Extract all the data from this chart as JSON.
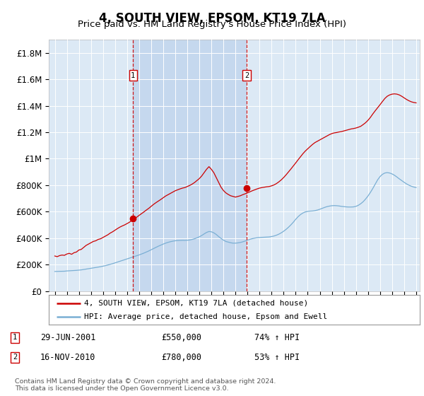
{
  "title": "4, SOUTH VIEW, EPSOM, KT19 7LA",
  "subtitle": "Price paid vs. HM Land Registry's House Price Index (HPI)",
  "title_fontsize": 12,
  "subtitle_fontsize": 9.5,
  "background_color": "#ffffff",
  "plot_bg_color": "#dce9f5",
  "shaded_color": "#c5d8ee",
  "grid_color": "#ffffff",
  "ylim": [
    0,
    1900000
  ],
  "yticks": [
    0,
    200000,
    400000,
    600000,
    800000,
    1000000,
    1200000,
    1400000,
    1600000,
    1800000
  ],
  "ytick_labels": [
    "£0",
    "£200K",
    "£400K",
    "£600K",
    "£800K",
    "£1M",
    "£1.2M",
    "£1.4M",
    "£1.6M",
    "£1.8M"
  ],
  "red_line_color": "#cc0000",
  "blue_line_color": "#7aafd4",
  "vline_color": "#cc0000",
  "marker1_year": 2001.5,
  "marker2_year": 2010.92,
  "sale1": {
    "date": "29-JUN-2001",
    "price": "£550,000",
    "hpi_pct": "74%",
    "label": "1",
    "y": 550000
  },
  "sale2": {
    "date": "16-NOV-2010",
    "price": "£780,000",
    "hpi_pct": "53%",
    "label": "2",
    "y": 780000
  },
  "legend_line1": "4, SOUTH VIEW, EPSOM, KT19 7LA (detached house)",
  "legend_line2": "HPI: Average price, detached house, Epsom and Ewell",
  "footnote": "Contains HM Land Registry data © Crown copyright and database right 2024.\nThis data is licensed under the Open Government Licence v3.0.",
  "red_years": [
    1995.0,
    1995.2,
    1995.4,
    1995.6,
    1995.8,
    1996.0,
    1996.2,
    1996.4,
    1996.6,
    1996.8,
    1997.0,
    1997.2,
    1997.4,
    1997.6,
    1997.8,
    1998.0,
    1998.2,
    1998.4,
    1998.6,
    1998.8,
    1999.0,
    1999.2,
    1999.4,
    1999.6,
    1999.8,
    2000.0,
    2000.2,
    2000.4,
    2000.6,
    2000.8,
    2001.0,
    2001.2,
    2001.4,
    2001.6,
    2001.8,
    2002.0,
    2002.2,
    2002.4,
    2002.6,
    2002.8,
    2003.0,
    2003.2,
    2003.4,
    2003.6,
    2003.8,
    2004.0,
    2004.2,
    2004.4,
    2004.6,
    2004.8,
    2005.0,
    2005.2,
    2005.4,
    2005.6,
    2005.8,
    2006.0,
    2006.2,
    2006.4,
    2006.6,
    2006.8,
    2007.0,
    2007.2,
    2007.4,
    2007.6,
    2007.8,
    2008.0,
    2008.2,
    2008.4,
    2008.6,
    2008.8,
    2009.0,
    2009.2,
    2009.4,
    2009.6,
    2009.8,
    2010.0,
    2010.2,
    2010.4,
    2010.6,
    2010.8,
    2011.0,
    2011.2,
    2011.4,
    2011.6,
    2011.8,
    2012.0,
    2012.2,
    2012.4,
    2012.6,
    2012.8,
    2013.0,
    2013.2,
    2013.4,
    2013.6,
    2013.8,
    2014.0,
    2014.2,
    2014.4,
    2014.6,
    2014.8,
    2015.0,
    2015.2,
    2015.4,
    2015.6,
    2015.8,
    2016.0,
    2016.2,
    2016.4,
    2016.6,
    2016.8,
    2017.0,
    2017.2,
    2017.4,
    2017.6,
    2017.8,
    2018.0,
    2018.2,
    2018.4,
    2018.6,
    2018.8,
    2019.0,
    2019.2,
    2019.4,
    2019.6,
    2019.8,
    2020.0,
    2020.2,
    2020.4,
    2020.6,
    2020.8,
    2021.0,
    2021.2,
    2021.4,
    2021.6,
    2021.8,
    2022.0,
    2022.2,
    2022.4,
    2022.6,
    2022.8,
    2023.0,
    2023.2,
    2023.4,
    2023.6,
    2023.8,
    2024.0,
    2024.2,
    2024.4,
    2024.6,
    2024.8,
    2025.0
  ],
  "red_vals": [
    265000,
    260000,
    268000,
    272000,
    270000,
    280000,
    285000,
    278000,
    290000,
    295000,
    310000,
    315000,
    330000,
    345000,
    355000,
    365000,
    375000,
    380000,
    390000,
    395000,
    405000,
    415000,
    425000,
    438000,
    448000,
    460000,
    472000,
    483000,
    492000,
    500000,
    510000,
    520000,
    535000,
    548000,
    558000,
    572000,
    585000,
    598000,
    612000,
    625000,
    640000,
    655000,
    668000,
    680000,
    692000,
    705000,
    718000,
    728000,
    738000,
    748000,
    758000,
    765000,
    772000,
    778000,
    782000,
    790000,
    798000,
    808000,
    820000,
    835000,
    850000,
    870000,
    895000,
    920000,
    940000,
    920000,
    895000,
    858000,
    820000,
    785000,
    760000,
    742000,
    730000,
    720000,
    715000,
    710000,
    715000,
    720000,
    728000,
    735000,
    742000,
    750000,
    758000,
    765000,
    772000,
    778000,
    782000,
    785000,
    788000,
    790000,
    795000,
    802000,
    812000,
    825000,
    840000,
    858000,
    878000,
    900000,
    922000,
    945000,
    968000,
    992000,
    1015000,
    1038000,
    1058000,
    1075000,
    1092000,
    1108000,
    1122000,
    1132000,
    1142000,
    1152000,
    1162000,
    1172000,
    1182000,
    1190000,
    1195000,
    1198000,
    1202000,
    1205000,
    1210000,
    1215000,
    1220000,
    1225000,
    1228000,
    1232000,
    1238000,
    1245000,
    1258000,
    1272000,
    1290000,
    1312000,
    1338000,
    1362000,
    1385000,
    1408000,
    1432000,
    1455000,
    1472000,
    1482000,
    1488000,
    1490000,
    1488000,
    1482000,
    1472000,
    1460000,
    1448000,
    1438000,
    1430000,
    1425000,
    1422000
  ],
  "blue_years": [
    1995.0,
    1995.2,
    1995.4,
    1995.6,
    1995.8,
    1996.0,
    1996.2,
    1996.4,
    1996.6,
    1996.8,
    1997.0,
    1997.2,
    1997.4,
    1997.6,
    1997.8,
    1998.0,
    1998.2,
    1998.4,
    1998.6,
    1998.8,
    1999.0,
    1999.2,
    1999.4,
    1999.6,
    1999.8,
    2000.0,
    2000.2,
    2000.4,
    2000.6,
    2000.8,
    2001.0,
    2001.2,
    2001.4,
    2001.6,
    2001.8,
    2002.0,
    2002.2,
    2002.4,
    2002.6,
    2002.8,
    2003.0,
    2003.2,
    2003.4,
    2003.6,
    2003.8,
    2004.0,
    2004.2,
    2004.4,
    2004.6,
    2004.8,
    2005.0,
    2005.2,
    2005.4,
    2005.6,
    2005.8,
    2006.0,
    2006.2,
    2006.4,
    2006.6,
    2006.8,
    2007.0,
    2007.2,
    2007.4,
    2007.6,
    2007.8,
    2008.0,
    2008.2,
    2008.4,
    2008.6,
    2008.8,
    2009.0,
    2009.2,
    2009.4,
    2009.6,
    2009.8,
    2010.0,
    2010.2,
    2010.4,
    2010.6,
    2010.8,
    2011.0,
    2011.2,
    2011.4,
    2011.6,
    2011.8,
    2012.0,
    2012.2,
    2012.4,
    2012.6,
    2012.8,
    2013.0,
    2013.2,
    2013.4,
    2013.6,
    2013.8,
    2014.0,
    2014.2,
    2014.4,
    2014.6,
    2014.8,
    2015.0,
    2015.2,
    2015.4,
    2015.6,
    2015.8,
    2016.0,
    2016.2,
    2016.4,
    2016.6,
    2016.8,
    2017.0,
    2017.2,
    2017.4,
    2017.6,
    2017.8,
    2018.0,
    2018.2,
    2018.4,
    2018.6,
    2018.8,
    2019.0,
    2019.2,
    2019.4,
    2019.6,
    2019.8,
    2020.0,
    2020.2,
    2020.4,
    2020.6,
    2020.8,
    2021.0,
    2021.2,
    2021.4,
    2021.6,
    2021.8,
    2022.0,
    2022.2,
    2022.4,
    2022.6,
    2022.8,
    2023.0,
    2023.2,
    2023.4,
    2023.6,
    2023.8,
    2024.0,
    2024.2,
    2024.4,
    2024.6,
    2024.8,
    2025.0
  ],
  "blue_vals": [
    148000,
    148500,
    149000,
    149500,
    150000,
    152000,
    153000,
    154000,
    155000,
    156500,
    158000,
    160000,
    163000,
    166000,
    169000,
    172000,
    175000,
    178000,
    181000,
    184000,
    188000,
    192000,
    197000,
    202000,
    207000,
    213000,
    219000,
    225000,
    231000,
    237000,
    243000,
    249000,
    255000,
    261000,
    267000,
    273000,
    280000,
    287000,
    295000,
    303000,
    312000,
    321000,
    330000,
    339000,
    347000,
    355000,
    362000,
    368000,
    373000,
    377000,
    380000,
    382000,
    383000,
    383500,
    383000,
    384000,
    386000,
    390000,
    395000,
    402000,
    410000,
    420000,
    432000,
    443000,
    450000,
    448000,
    440000,
    428000,
    412000,
    398000,
    385000,
    375000,
    370000,
    365000,
    362000,
    362000,
    364000,
    367000,
    372000,
    378000,
    385000,
    391000,
    396000,
    400000,
    403000,
    405000,
    406000,
    407000,
    408000,
    409000,
    412000,
    416000,
    422000,
    430000,
    440000,
    452000,
    466000,
    482000,
    500000,
    520000,
    542000,
    562000,
    578000,
    590000,
    598000,
    602000,
    604000,
    605000,
    608000,
    612000,
    618000,
    625000,
    632000,
    638000,
    642000,
    645000,
    646000,
    645000,
    643000,
    640000,
    638000,
    636000,
    635000,
    635000,
    636000,
    640000,
    648000,
    660000,
    675000,
    695000,
    718000,
    745000,
    775000,
    808000,
    840000,
    865000,
    882000,
    892000,
    895000,
    892000,
    885000,
    875000,
    862000,
    848000,
    835000,
    822000,
    810000,
    800000,
    792000,
    786000,
    782000
  ]
}
